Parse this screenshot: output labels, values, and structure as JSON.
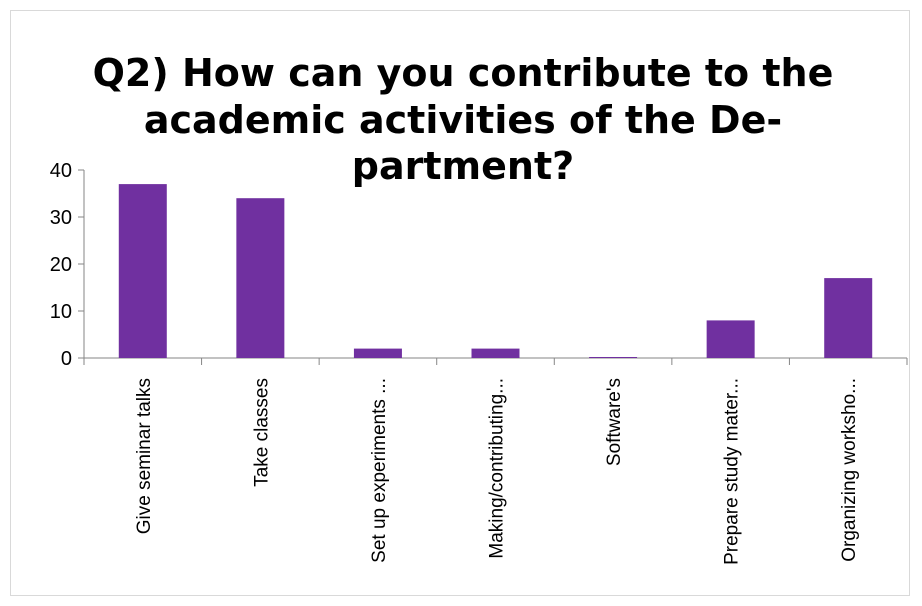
{
  "chart_data": {
    "type": "bar",
    "title_lines": [
      "Q2) How can you contribute to the",
      "academic activities of the De-",
      "partment?"
    ],
    "categories": [
      "Give seminar talks",
      "Take classes",
      "Set up experiments ...",
      "Making/contributing...",
      "Software's",
      "Prepare study mater...",
      "Organizing worksho..."
    ],
    "values": [
      37,
      34,
      2,
      2,
      0,
      8,
      17
    ],
    "ylim": [
      0,
      40
    ],
    "yticks": [
      "0",
      "10",
      "20",
      "30",
      "40"
    ],
    "gridlines": false,
    "legend": "none",
    "bar_color": "#7030a0",
    "axis_color": "#868686"
  }
}
